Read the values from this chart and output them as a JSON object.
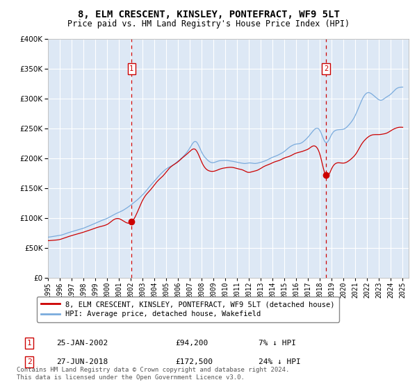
{
  "title": "8, ELM CRESCENT, KINSLEY, PONTEFRACT, WF9 5LT",
  "subtitle": "Price paid vs. HM Land Registry's House Price Index (HPI)",
  "bg_color": "#dde8f5",
  "ylim": [
    0,
    400000
  ],
  "yticks": [
    0,
    50000,
    100000,
    150000,
    200000,
    250000,
    300000,
    350000,
    400000
  ],
  "sale1": {
    "date_label": "25-JAN-2002",
    "price": 94200,
    "year": 2002.07,
    "label": "1",
    "hpi_pct": "7% ↓ HPI"
  },
  "sale2": {
    "date_label": "27-JUN-2018",
    "price": 172500,
    "year": 2018.5,
    "label": "2",
    "hpi_pct": "24% ↓ HPI"
  },
  "legend_red_label": "8, ELM CRESCENT, KINSLEY, PONTEFRACT, WF9 5LT (detached house)",
  "legend_blue_label": "HPI: Average price, detached house, Wakefield",
  "footer": "Contains HM Land Registry data © Crown copyright and database right 2024.\nThis data is licensed under the Open Government Licence v3.0.",
  "hpi_color": "#7aabdd",
  "sale_color": "#cc0000",
  "vline_color": "#cc0000",
  "xlim_start": 1995,
  "xlim_end": 2025.5
}
